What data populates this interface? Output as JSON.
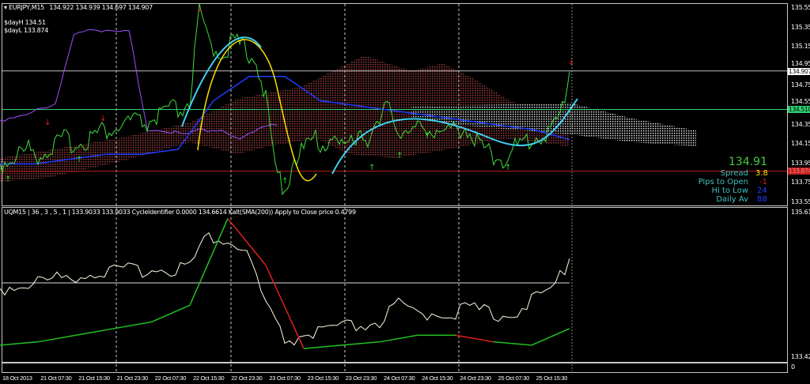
{
  "header": {
    "symbol": "EURJPY,M15",
    "ohlc": "134.922 134.939 134.697 134.907",
    "day_high": "$dayH 134.51",
    "day_low": "$dayL 133.874"
  },
  "price_axis": {
    "ticks": [
      "135.555",
      "135.355",
      "135.155",
      "134.955",
      "134.755",
      "134.555",
      "134.355",
      "134.155",
      "133.955",
      "133.755",
      "133.555"
    ],
    "bid_tag": "134.907",
    "green_tag": "134.510",
    "red_tag": "133.874"
  },
  "info_panel": {
    "price": "134.91",
    "spread_label": "Spread",
    "spread_value": "3.8",
    "pips_label": "Pips to Open",
    "pips_value": "-1",
    "hilo_label": "Hi to Low",
    "hilo_value": "24",
    "daily_label": "Daily Av",
    "daily_value": "88"
  },
  "indicator": {
    "title": "UQM15 | 36 , 3 , 5 , 1 | 133.9033 133.9033 CycleIdentifier 0.0000 134.6614 Kalt(SMA(200)) Apply to Close price 0.4799",
    "axis_top": "135.6131",
    "axis_bottom": "133.4211",
    "sub_pane_label": "0"
  },
  "time_axis": [
    "18 Oct 2013",
    "21 Oct 07:30",
    "21 Oct 15:30",
    "21 Oct 23:30",
    "22 Oct 07:30",
    "22 Oct 15:30",
    "22 Oct 23:30",
    "23 Oct 07:30",
    "23 Oct 15:30",
    "23 Oct 23:30",
    "24 Oct 07:30",
    "24 Oct 15:30",
    "24 Oct 23:30",
    "25 Oct 07:30",
    "25 Oct 15:30"
  ],
  "colors": {
    "close": "#3cdc3c",
    "purple": "#a050ff",
    "blue": "#1e3cff",
    "cyan": "#40d0f0",
    "yellow": "#ffe000",
    "cloud": "#a04040",
    "osc_line": "#fff8e0",
    "cycle_up": "#20c020",
    "cycle_down": "#e02020",
    "bid_line": "#c0c0c0",
    "green_line": "#30d070",
    "red_line": "#c02020"
  },
  "series": {
    "close": [
      133.95,
      134.0,
      134.05,
      134.1,
      134.05,
      134.1,
      134.15,
      134.2,
      134.15,
      134.2,
      134.25,
      134.3,
      134.3,
      134.35,
      134.4,
      134.35,
      134.4,
      134.45,
      134.5,
      134.5,
      134.6,
      135.5,
      135.2,
      135.1,
      135.15,
      135.2,
      135.1,
      135.05,
      134.6,
      133.9,
      133.7,
      134.0,
      134.1,
      134.2,
      134.15,
      134.25,
      134.1,
      134.2,
      134.3,
      134.2,
      134.35,
      134.6,
      134.3,
      134.25,
      134.3,
      134.35,
      134.3,
      134.25,
      134.3,
      134.35,
      134.2,
      134.1,
      134.05,
      134.0,
      134.1,
      134.15,
      134.2,
      134.25,
      134.3,
      134.4,
      134.9
    ],
    "purple": [
      134.4,
      134.45,
      134.5,
      134.55,
      135.3,
      135.35,
      135.3,
      135.3,
      134.3,
      134.3,
      134.25,
      134.3,
      134.3,
      134.2,
      134.3,
      134.35
    ],
    "blue": [
      133.95,
      133.95,
      134.0,
      134.05,
      134.05,
      134.1,
      134.6,
      134.85,
      134.85,
      134.6,
      134.55,
      134.5,
      134.45,
      134.4,
      134.35,
      134.3,
      134.2
    ],
    "oscillator": [
      134.45,
      134.5,
      134.55,
      134.6,
      134.65,
      134.7,
      134.7,
      134.72,
      134.75,
      134.75,
      134.8,
      135.25,
      135.15,
      135.0,
      134.2,
      133.65,
      133.75,
      133.8,
      133.85,
      133.9,
      133.95,
      134.2,
      134.05,
      134.1,
      134.1,
      134.15,
      134.05,
      134.1,
      134.25,
      134.4,
      134.9
    ],
    "cycle": [
      133.6,
      133.65,
      133.75,
      133.85,
      133.95,
      134.2,
      135.5,
      134.8,
      133.55,
      133.6,
      133.65,
      133.75,
      133.75,
      133.65,
      133.6,
      133.85
    ]
  }
}
